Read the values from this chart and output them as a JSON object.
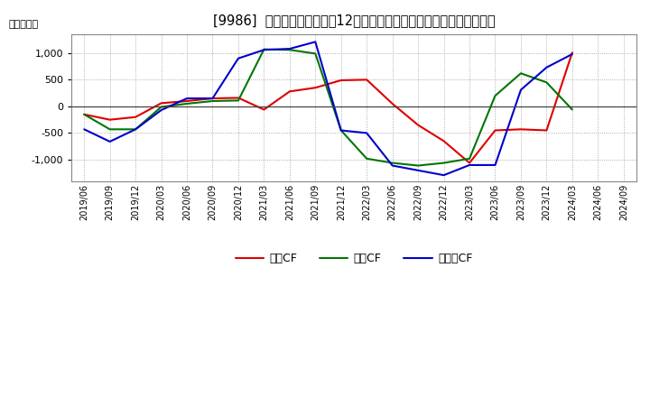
{
  "title": "[9986]  キャッシュフローの12か月移動合計の対前年同期増減額の推移",
  "ylabel": "（百万円）",
  "background_color": "#ffffff",
  "plot_bg_color": "#ffffff",
  "grid_color": "#aaaaaa",
  "x_labels": [
    "2019/06",
    "2019/09",
    "2019/12",
    "2020/03",
    "2020/06",
    "2020/09",
    "2020/12",
    "2021/03",
    "2021/06",
    "2021/09",
    "2021/12",
    "2022/03",
    "2022/06",
    "2022/09",
    "2022/12",
    "2023/03",
    "2023/06",
    "2023/09",
    "2023/12",
    "2024/03",
    "2024/06",
    "2024/09"
  ],
  "営業CF": [
    -150,
    -250,
    -200,
    60,
    100,
    150,
    160,
    -60,
    280,
    350,
    490,
    500,
    50,
    -350,
    -650,
    -1060,
    -450,
    -430,
    -450,
    1010,
    null,
    null
  ],
  "投資CF": [
    -150,
    -430,
    -430,
    -10,
    50,
    100,
    110,
    1070,
    1060,
    990,
    -450,
    -980,
    -1060,
    -1110,
    -1060,
    -980,
    200,
    620,
    450,
    -60,
    null,
    null
  ],
  "フリーCF": [
    -430,
    -660,
    -430,
    -70,
    150,
    150,
    900,
    1060,
    1080,
    1210,
    -450,
    -500,
    -1110,
    -1200,
    -1290,
    -1100,
    -1100,
    310,
    730,
    980,
    null,
    null
  ],
  "line_colors": {
    "営業CF": "#dd0000",
    "投資CF": "#007700",
    "フリーCF": "#0000cc"
  },
  "ylim": [
    -1400,
    1350
  ],
  "yticks": [
    -1000,
    -500,
    0,
    500,
    1000
  ],
  "legend_labels": [
    "営業CF",
    "投資CF",
    "フリーCF"
  ]
}
